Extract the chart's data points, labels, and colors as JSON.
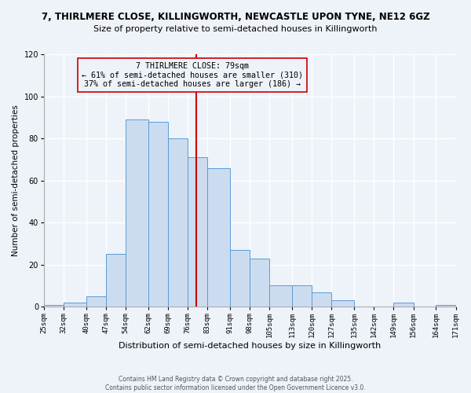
{
  "title": "7, THIRLMERE CLOSE, KILLINGWORTH, NEWCASTLE UPON TYNE, NE12 6GZ",
  "subtitle": "Size of property relative to semi-detached houses in Killingworth",
  "xlabel": "Distribution of semi-detached houses by size in Killingworth",
  "ylabel": "Number of semi-detached properties",
  "bin_edges": [
    25,
    32,
    40,
    47,
    54,
    62,
    69,
    76,
    83,
    91,
    98,
    105,
    113,
    120,
    127,
    135,
    142,
    149,
    156,
    164,
    171
  ],
  "bar_heights": [
    1,
    2,
    5,
    25,
    89,
    88,
    80,
    71,
    66,
    27,
    23,
    10,
    10,
    7,
    3,
    0,
    0,
    2,
    0,
    1
  ],
  "bar_color": "#ccdcf0",
  "bar_edge_color": "#5b9bd5",
  "property_size": 79,
  "vline_color": "#cc0000",
  "annotation_line1": "7 THIRLMERE CLOSE: 79sqm",
  "annotation_line2": "← 61% of semi-detached houses are smaller (310)",
  "annotation_line3": "37% of semi-detached houses are larger (186) →",
  "annotation_box_edge": "#cc0000",
  "tick_labels": [
    "25sqm",
    "32sqm",
    "40sqm",
    "47sqm",
    "54sqm",
    "62sqm",
    "69sqm",
    "76sqm",
    "83sqm",
    "91sqm",
    "98sqm",
    "105sqm",
    "113sqm",
    "120sqm",
    "127sqm",
    "135sqm",
    "142sqm",
    "149sqm",
    "156sqm",
    "164sqm",
    "171sqm"
  ],
  "ylim": [
    0,
    120
  ],
  "yticks": [
    0,
    20,
    40,
    60,
    80,
    100,
    120
  ],
  "footer1": "Contains HM Land Registry data © Crown copyright and database right 2025.",
  "footer2": "Contains public sector information licensed under the Open Government Licence v3.0.",
  "bg_color": "#eef2f9",
  "grid_color": "#ffffff",
  "title_fontsize": 8.5,
  "subtitle_fontsize": 8,
  "ylabel_fontsize": 7.5,
  "xlabel_fontsize": 8,
  "tick_fontsize": 6.5,
  "annotation_fontsize": 7.2,
  "footer_fontsize": 5.5
}
